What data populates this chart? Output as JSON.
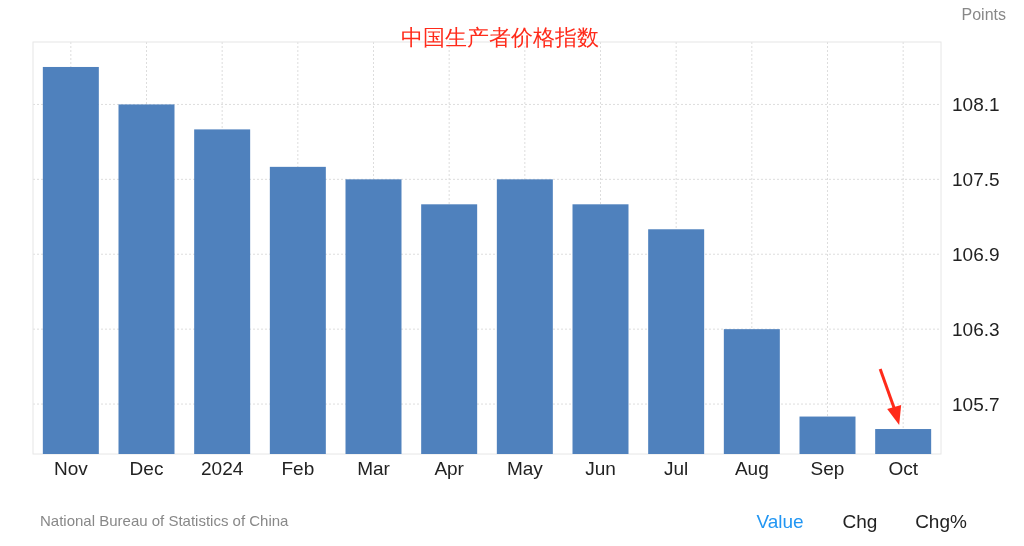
{
  "chart_data": {
    "type": "bar",
    "title": "中国生产者价格指数",
    "ylabel": "Points",
    "categories": [
      "Nov",
      "Dec",
      "2024",
      "Feb",
      "Mar",
      "Apr",
      "May",
      "Jun",
      "Jul",
      "Aug",
      "Sep",
      "Oct"
    ],
    "values": [
      108.4,
      108.1,
      107.9,
      107.6,
      107.5,
      107.3,
      107.5,
      107.3,
      107.1,
      106.3,
      105.6,
      105.5
    ],
    "color": "#4f81bd",
    "ylim": [
      105.3,
      108.6
    ],
    "yticks": [
      105.7,
      106.3,
      106.9,
      107.5,
      108.1
    ],
    "grid": true,
    "annotations": [
      "National Bureau of Statistics of China",
      "Value",
      "Chg",
      "Chg%"
    ]
  }
}
